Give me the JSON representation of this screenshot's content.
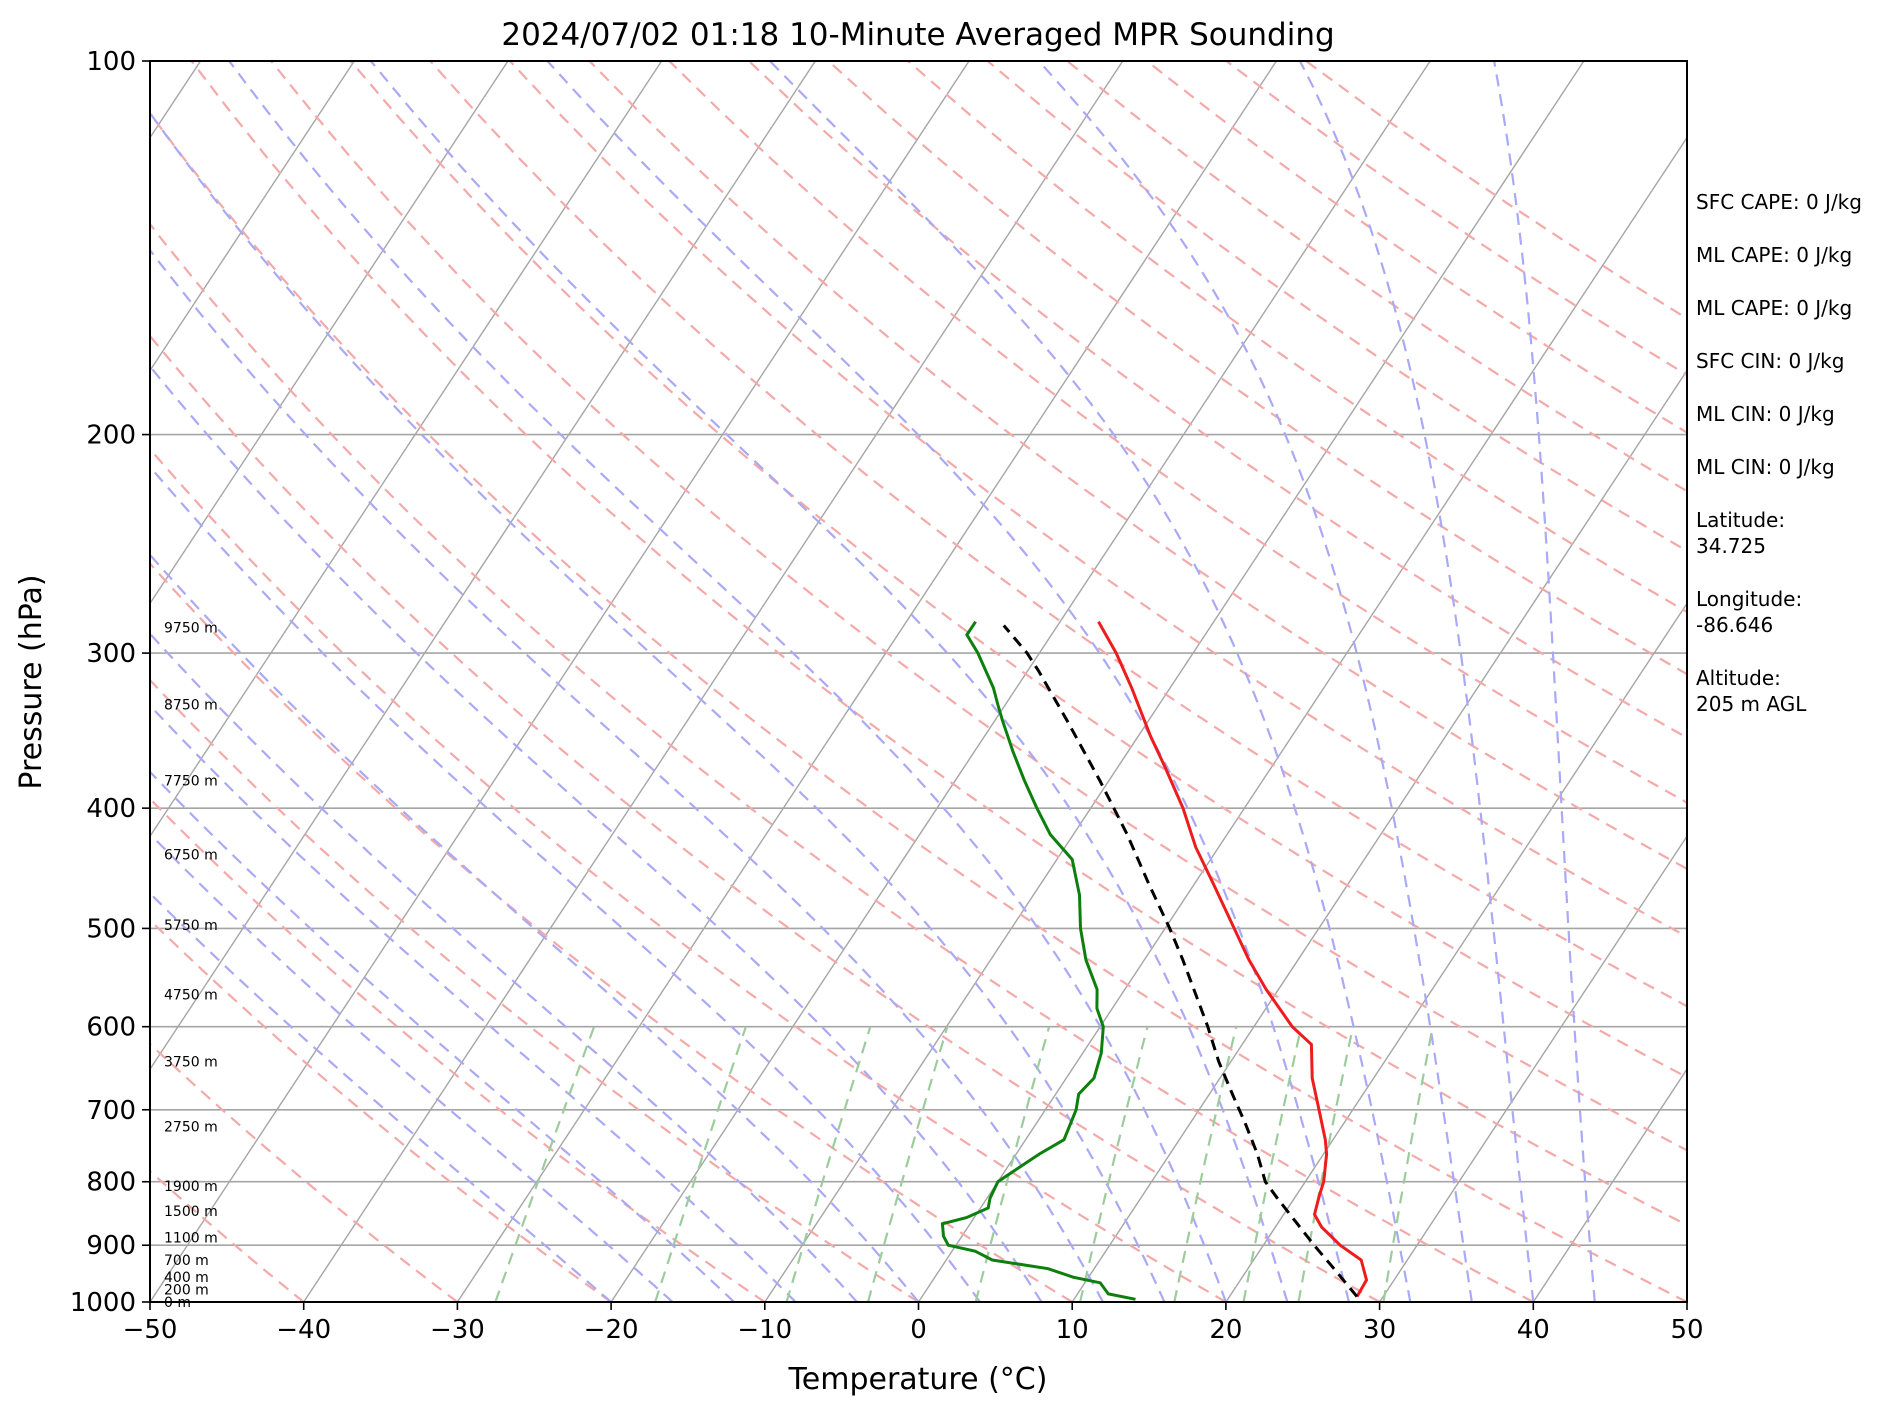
{
  "chart_data": {
    "type": "line",
    "title": "2024/07/02 01:18 10-Minute Averaged MPR Sounding",
    "xlabel": "Temperature (°C)",
    "ylabel": "Pressure (hPa)",
    "xlim": [
      -50,
      50
    ],
    "ylim": [
      1000,
      100
    ],
    "y_scale": "log",
    "x_ticks": [
      "−50",
      "−40",
      "−30",
      "−20",
      "−10",
      "0",
      "10",
      "20",
      "30",
      "40",
      "50"
    ],
    "y_ticks": [
      "100",
      "200",
      "300",
      "400",
      "500",
      "600",
      "700",
      "800",
      "900",
      "1000"
    ],
    "grid": true,
    "background_lines": [
      "isotherms",
      "dry adiabats",
      "moist adiabats",
      "mixing ratio lines"
    ],
    "colors": {
      "temperature": "#ee1c1c",
      "dewpoint": "#0d7f0d",
      "parcel": "#000000",
      "dry_adiabat": "#f4a9a9",
      "moist_adiabat": "#a9a9f5",
      "mixing_ratio": "#9ccc9c",
      "isotherm": "#a5a5a5"
    },
    "series": [
      {
        "name": "temperature",
        "pressure": [
          990,
          960,
          925,
          900,
          870,
          850,
          820,
          800,
          760,
          740,
          700,
          660,
          620,
          600,
          560,
          530,
          500,
          460,
          430,
          400,
          370,
          350,
          320,
          300,
          283
        ],
        "temperature": [
          28.3,
          28.2,
          27.0,
          25.0,
          23.0,
          22.0,
          21.5,
          21.2,
          20.2,
          19.5,
          17.8,
          16.0,
          14.5,
          12.5,
          9.2,
          6.8,
          4.5,
          1.2,
          -1.5,
          -4.0,
          -7.0,
          -9.2,
          -12.5,
          -15.0,
          -17.5
        ]
      },
      {
        "name": "dewpoint",
        "pressure": [
          995,
          985,
          965,
          955,
          940,
          925,
          915,
          910,
          900,
          885,
          865,
          855,
          840,
          825,
          800,
          760,
          740,
          700,
          680,
          660,
          630,
          600,
          580,
          560,
          530,
          500,
          470,
          440,
          420,
          400,
          380,
          360,
          340,
          330,
          320,
          300,
          290,
          283
        ],
        "temperature": [
          14.0,
          12.0,
          11.0,
          9.0,
          7.0,
          3.0,
          2.0,
          1.5,
          -0.5,
          -1.2,
          -1.8,
          -0.5,
          0.5,
          0.2,
          0.0,
          1.5,
          2.5,
          2.0,
          1.5,
          1.8,
          1.2,
          0.2,
          -1.0,
          -1.8,
          -3.8,
          -5.5,
          -7.0,
          -9.0,
          -11.5,
          -13.5,
          -15.5,
          -17.5,
          -19.5,
          -20.5,
          -21.5,
          -24.0,
          -25.5,
          -25.5
        ]
      },
      {
        "name": "parcel",
        "pressure": [
          990,
          940,
          900,
          860,
          825,
          800,
          760,
          720,
          680,
          640,
          600,
          560,
          530,
          500,
          460,
          420,
          380,
          340,
          310,
          300,
          285
        ],
        "temperature": [
          28.3,
          25.6,
          23.3,
          21.0,
          18.9,
          17.4,
          15.7,
          13.7,
          11.5,
          9.2,
          7.0,
          4.5,
          2.5,
          0.3,
          -3.0,
          -6.5,
          -10.6,
          -15.3,
          -19.3,
          -20.8,
          -23.5
        ]
      }
    ],
    "height_labels": [
      {
        "pressure": 1000,
        "text": "0 m"
      },
      {
        "pressure": 977,
        "text": "200 m"
      },
      {
        "pressure": 955,
        "text": "400 m"
      },
      {
        "pressure": 925,
        "text": "700 m"
      },
      {
        "pressure": 887,
        "text": "1100 m"
      },
      {
        "pressure": 845,
        "text": "1500 m"
      },
      {
        "pressure": 806,
        "text": "1900 m"
      },
      {
        "pressure": 722,
        "text": "2750 m"
      },
      {
        "pressure": 640,
        "text": "3750 m"
      },
      {
        "pressure": 565,
        "text": "4750 m"
      },
      {
        "pressure": 497,
        "text": "5750 m"
      },
      {
        "pressure": 436,
        "text": "6750 m"
      },
      {
        "pressure": 380,
        "text": "7750 m"
      },
      {
        "pressure": 330,
        "text": "8750 m"
      },
      {
        "pressure": 286,
        "text": "9750 m"
      }
    ]
  },
  "side_panel": {
    "stats": [
      "SFC CAPE: 0 J/kg",
      "ML CAPE: 0 J/kg",
      "ML CAPE: 0 J/kg",
      "SFC CIN: 0 J/kg",
      "ML CIN: 0 J/kg",
      "ML CIN: 0 J/kg",
      "Latitude:\n34.725",
      "Longitude:\n-86.646",
      "Altitude:\n205 m AGL"
    ]
  }
}
